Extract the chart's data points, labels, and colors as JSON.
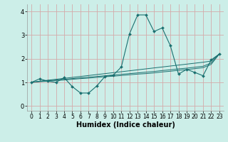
{
  "xlabel": "Humidex (Indice chaleur)",
  "bg_color": "#cceee8",
  "grid_color": "#d4aaaa",
  "line_color": "#1a7070",
  "xlim": [
    -0.5,
    23.5
  ],
  "ylim": [
    -0.2,
    4.3
  ],
  "yticks": [
    0,
    1,
    2,
    3,
    4
  ],
  "xticks": [
    0,
    1,
    2,
    3,
    4,
    5,
    6,
    7,
    8,
    9,
    10,
    11,
    12,
    13,
    14,
    15,
    16,
    17,
    18,
    19,
    20,
    21,
    22,
    23
  ],
  "x_data": [
    0,
    1,
    2,
    3,
    4,
    5,
    6,
    7,
    8,
    9,
    10,
    11,
    12,
    13,
    14,
    15,
    16,
    17,
    18,
    19,
    20,
    21,
    22,
    23
  ],
  "y_main": [
    1.0,
    1.15,
    1.05,
    1.0,
    1.2,
    0.82,
    0.55,
    0.55,
    0.85,
    1.25,
    1.3,
    1.65,
    3.05,
    3.85,
    3.85,
    3.15,
    3.3,
    2.55,
    1.35,
    1.55,
    1.42,
    1.28,
    1.95,
    2.2
  ],
  "y_linear1": [
    1.0,
    1.05,
    1.09,
    1.13,
    1.17,
    1.21,
    1.25,
    1.29,
    1.33,
    1.37,
    1.41,
    1.45,
    1.49,
    1.53,
    1.57,
    1.61,
    1.65,
    1.69,
    1.73,
    1.77,
    1.81,
    1.85,
    1.9,
    2.2
  ],
  "y_linear2": [
    1.0,
    1.04,
    1.07,
    1.1,
    1.13,
    1.16,
    1.19,
    1.22,
    1.25,
    1.28,
    1.31,
    1.34,
    1.37,
    1.4,
    1.43,
    1.46,
    1.5,
    1.53,
    1.57,
    1.6,
    1.64,
    1.68,
    1.82,
    2.2
  ],
  "y_linear3": [
    1.0,
    1.03,
    1.05,
    1.08,
    1.1,
    1.13,
    1.16,
    1.18,
    1.21,
    1.24,
    1.26,
    1.29,
    1.32,
    1.35,
    1.37,
    1.4,
    1.44,
    1.47,
    1.51,
    1.54,
    1.58,
    1.62,
    1.76,
    2.2
  ],
  "ylabel_fontsize": 6,
  "xlabel_fontsize": 7,
  "tick_labelsize": 6
}
